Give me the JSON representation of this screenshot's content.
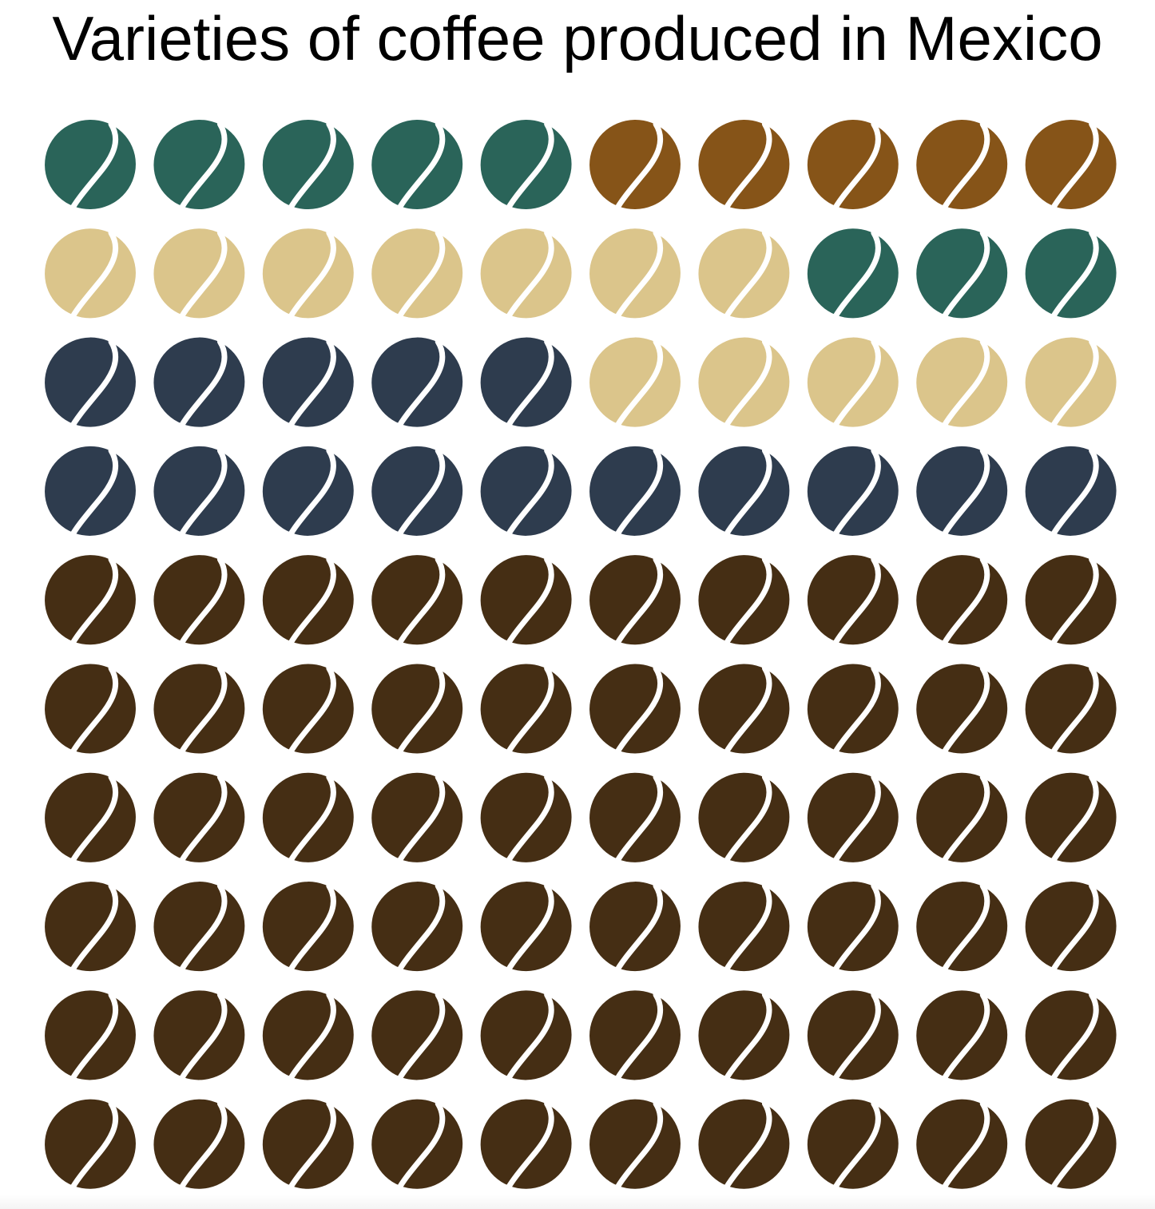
{
  "chart_data": {
    "type": "waffle",
    "title": "Varieties of coffee produced in Mexico",
    "grid": {
      "rows": 10,
      "cols": 10
    },
    "bean_icon": "coffee-bean-icon",
    "series": [
      {
        "color": "#2a6459",
        "count": 8
      },
      {
        "color": "#865418",
        "count": 5
      },
      {
        "color": "#dbc58b",
        "count": 12
      },
      {
        "color": "#2e3c4e",
        "count": 15
      },
      {
        "color": "#452e14",
        "count": 60
      }
    ],
    "cells": [
      [
        "#2a6459",
        "#2a6459",
        "#2a6459",
        "#2a6459",
        "#2a6459",
        "#865418",
        "#865418",
        "#865418",
        "#865418",
        "#865418"
      ],
      [
        "#dbc58b",
        "#dbc58b",
        "#dbc58b",
        "#dbc58b",
        "#dbc58b",
        "#dbc58b",
        "#dbc58b",
        "#2a6459",
        "#2a6459",
        "#2a6459"
      ],
      [
        "#2e3c4e",
        "#2e3c4e",
        "#2e3c4e",
        "#2e3c4e",
        "#2e3c4e",
        "#dbc58b",
        "#dbc58b",
        "#dbc58b",
        "#dbc58b",
        "#dbc58b"
      ],
      [
        "#2e3c4e",
        "#2e3c4e",
        "#2e3c4e",
        "#2e3c4e",
        "#2e3c4e",
        "#2e3c4e",
        "#2e3c4e",
        "#2e3c4e",
        "#2e3c4e",
        "#2e3c4e"
      ],
      [
        "#452e14",
        "#452e14",
        "#452e14",
        "#452e14",
        "#452e14",
        "#452e14",
        "#452e14",
        "#452e14",
        "#452e14",
        "#452e14"
      ],
      [
        "#452e14",
        "#452e14",
        "#452e14",
        "#452e14",
        "#452e14",
        "#452e14",
        "#452e14",
        "#452e14",
        "#452e14",
        "#452e14"
      ],
      [
        "#452e14",
        "#452e14",
        "#452e14",
        "#452e14",
        "#452e14",
        "#452e14",
        "#452e14",
        "#452e14",
        "#452e14",
        "#452e14"
      ],
      [
        "#452e14",
        "#452e14",
        "#452e14",
        "#452e14",
        "#452e14",
        "#452e14",
        "#452e14",
        "#452e14",
        "#452e14",
        "#452e14"
      ],
      [
        "#452e14",
        "#452e14",
        "#452e14",
        "#452e14",
        "#452e14",
        "#452e14",
        "#452e14",
        "#452e14",
        "#452e14",
        "#452e14"
      ],
      [
        "#452e14",
        "#452e14",
        "#452e14",
        "#452e14",
        "#452e14",
        "#452e14",
        "#452e14",
        "#452e14",
        "#452e14",
        "#452e14"
      ]
    ]
  }
}
